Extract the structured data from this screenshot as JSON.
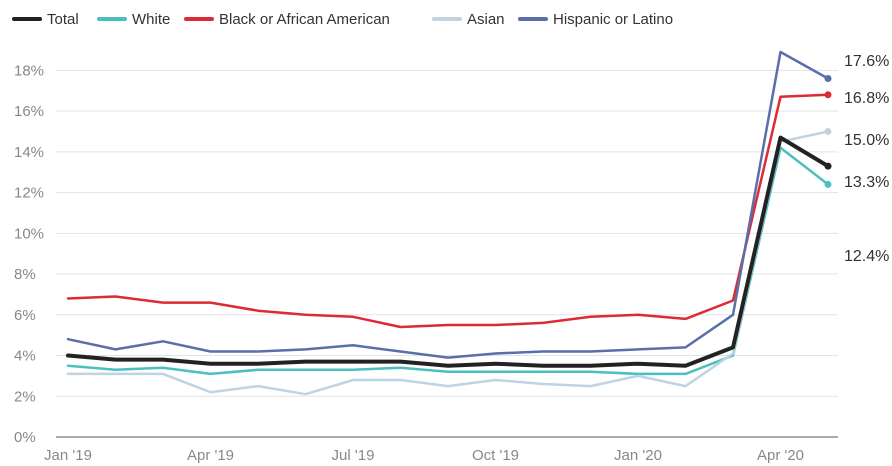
{
  "chart_data": {
    "type": "line",
    "title": "",
    "xlabel": "",
    "ylabel": "",
    "x": [
      "2019-01",
      "2019-02",
      "2019-03",
      "2019-04",
      "2019-05",
      "2019-06",
      "2019-07",
      "2019-08",
      "2019-09",
      "2019-10",
      "2019-11",
      "2019-12",
      "2020-01",
      "2020-02",
      "2020-03",
      "2020-04",
      "2020-05"
    ],
    "x_tick_labels": [
      {
        "at": "2019-01",
        "label": "Jan '19"
      },
      {
        "at": "2019-04",
        "label": "Apr '19"
      },
      {
        "at": "2019-07",
        "label": "Jul '19"
      },
      {
        "at": "2019-10",
        "label": "Oct '19"
      },
      {
        "at": "2020-01",
        "label": "Jan '20"
      },
      {
        "at": "2020-04",
        "label": "Apr '20"
      }
    ],
    "y_ticks": [
      0,
      2,
      4,
      6,
      8,
      10,
      12,
      14,
      16,
      18
    ],
    "y_tick_labels": [
      "0%",
      "2%",
      "4%",
      "6%",
      "8%",
      "10%",
      "12%",
      "14%",
      "16%",
      "18%"
    ],
    "ylim": [
      0,
      19
    ],
    "grid": true,
    "legend_position": "top-left",
    "series": [
      {
        "name": "Total",
        "color": "#222222",
        "width": 4,
        "values": [
          4.0,
          3.8,
          3.8,
          3.6,
          3.6,
          3.7,
          3.7,
          3.7,
          3.5,
          3.6,
          3.5,
          3.5,
          3.6,
          3.5,
          4.4,
          14.7,
          13.3
        ]
      },
      {
        "name": "White",
        "color": "#4bbfbf",
        "width": 2.5,
        "values": [
          3.5,
          3.3,
          3.4,
          3.1,
          3.3,
          3.3,
          3.3,
          3.4,
          3.2,
          3.2,
          3.2,
          3.2,
          3.1,
          3.1,
          4.0,
          14.2,
          12.4
        ]
      },
      {
        "name": "Black or African American",
        "color": "#dc2b35",
        "width": 2.5,
        "values": [
          6.8,
          6.9,
          6.6,
          6.6,
          6.2,
          6.0,
          5.9,
          5.4,
          5.5,
          5.5,
          5.6,
          5.9,
          6.0,
          5.8,
          6.7,
          16.7,
          16.8
        ]
      },
      {
        "name": "Asian",
        "color": "#bfd3e3",
        "width": 2.5,
        "values": [
          3.1,
          3.1,
          3.1,
          2.2,
          2.5,
          2.1,
          2.8,
          2.8,
          2.5,
          2.8,
          2.6,
          2.5,
          3.0,
          2.5,
          4.1,
          14.5,
          15.0
        ]
      },
      {
        "name": "Hispanic or Latino",
        "color": "#5a6faa",
        "width": 2.5,
        "values": [
          4.8,
          4.3,
          4.7,
          4.2,
          4.2,
          4.3,
          4.5,
          4.2,
          3.9,
          4.1,
          4.2,
          4.2,
          4.3,
          4.4,
          6.0,
          18.9,
          17.6
        ]
      }
    ],
    "end_labels": [
      "17.6%",
      "16.8%",
      "15.0%",
      "13.3%",
      "12.4%"
    ]
  }
}
